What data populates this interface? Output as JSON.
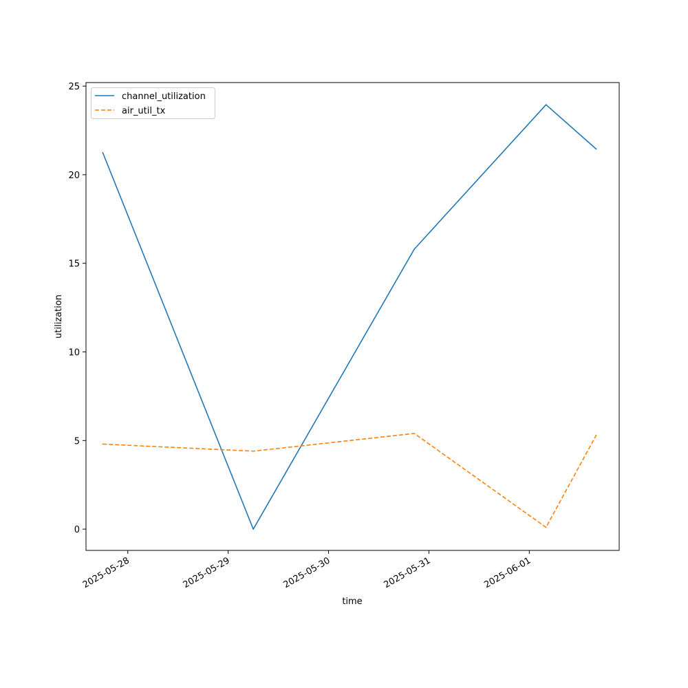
{
  "chart_data": {
    "type": "line",
    "title": "",
    "xlabel": "time",
    "ylabel": "utilization",
    "x": [
      "2025-05-27 18:00",
      "2025-05-29 06:00",
      "2025-05-30 20:30",
      "2025-06-01 04:00",
      "2025-06-01 16:00"
    ],
    "xlim": [
      "2025-05-27 14:00",
      "2025-06-01 21:30"
    ],
    "ylim": [
      -1.2,
      25.2
    ],
    "x_ticks": [
      "2025-05-28",
      "2025-05-29",
      "2025-05-30",
      "2025-05-31",
      "2025-06-01"
    ],
    "y_ticks": [
      0,
      5,
      10,
      15,
      20,
      25
    ],
    "grid": false,
    "legend_position": "upper left",
    "series": [
      {
        "name": "channel_utilization",
        "values": [
          21.25,
          0.0,
          15.8,
          23.95,
          21.45
        ],
        "color": "#1f77b4",
        "style": "solid"
      },
      {
        "name": "air_util_tx",
        "values": [
          4.8,
          4.4,
          5.4,
          0.1,
          5.3
        ],
        "color": "#ff7f0e",
        "style": "dashed"
      }
    ]
  }
}
